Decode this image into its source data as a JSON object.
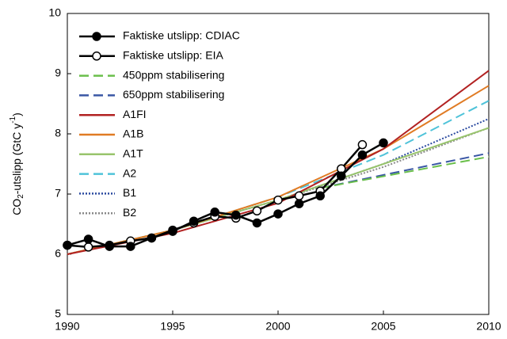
{
  "chart_data": {
    "type": "line",
    "ylabel_parts": [
      "CO",
      "2",
      "-utslipp (GtC y",
      "-1",
      ")"
    ],
    "xlim": [
      1990,
      2010
    ],
    "xticks": [
      1990,
      1995,
      2000,
      2005,
      2010
    ],
    "ylim": [
      5,
      10
    ],
    "yticks": [
      5,
      6,
      7,
      8,
      9,
      10
    ],
    "series": [
      {
        "name": "Faktiske utslipp: CDIAC",
        "color": "#000000",
        "dash": "solid",
        "marker": "filled",
        "x": [
          1990,
          1991,
          1992,
          1993,
          1994,
          1995,
          1996,
          1997,
          1998,
          1999,
          2000,
          2001,
          2002,
          2003,
          2004,
          2005
        ],
        "values": [
          6.15,
          6.25,
          6.13,
          6.13,
          6.27,
          6.38,
          6.55,
          6.7,
          6.65,
          6.52,
          6.67,
          6.84,
          6.97,
          7.3,
          7.65,
          7.85
        ]
      },
      {
        "name": "Faktiske utslipp: EIA",
        "color": "#000000",
        "dash": "solid",
        "marker": "open",
        "x": [
          1990,
          1991,
          1992,
          1993,
          1994,
          1995,
          1996,
          1997,
          1998,
          1999,
          2000,
          2001,
          2002,
          2003,
          2004
        ],
        "values": [
          6.15,
          6.12,
          6.15,
          6.22,
          6.27,
          6.4,
          6.52,
          6.63,
          6.6,
          6.72,
          6.9,
          6.97,
          7.05,
          7.42,
          7.82
        ]
      },
      {
        "name": "450ppm stabilisering",
        "color": "#6abf4b",
        "dash": "dashed",
        "x": [
          2002,
          2010
        ],
        "values": [
          7.1,
          7.62
        ]
      },
      {
        "name": "650ppm stabilisering",
        "color": "#3a57a5",
        "dash": "dashed",
        "x": [
          2002,
          2010
        ],
        "values": [
          7.1,
          7.68
        ]
      },
      {
        "name": "A1FI",
        "color": "#b22222",
        "dash": "solid",
        "x": [
          1990,
          1995,
          2000,
          2005,
          2010
        ],
        "values": [
          6.0,
          6.35,
          6.85,
          7.75,
          9.05
        ]
      },
      {
        "name": "A1B",
        "color": "#e07b24",
        "dash": "solid",
        "x": [
          1990,
          1995,
          2000,
          2005,
          2010
        ],
        "values": [
          6.0,
          6.4,
          6.95,
          7.75,
          8.8
        ]
      },
      {
        "name": "A1T",
        "color": "#98c46c",
        "dash": "solid",
        "x": [
          1990,
          1995,
          2000,
          2005,
          2010
        ],
        "values": [
          6.0,
          6.4,
          6.9,
          7.5,
          8.1
        ]
      },
      {
        "name": "A2",
        "color": "#4fc3d9",
        "dash": "dashed",
        "x": [
          1990,
          1995,
          2000,
          2005,
          2010
        ],
        "values": [
          6.0,
          6.4,
          6.95,
          7.65,
          8.55
        ]
      },
      {
        "name": "B1",
        "color": "#2b4aa0",
        "dash": "dotted",
        "x": [
          1990,
          1995,
          2000,
          2005,
          2010
        ],
        "values": [
          6.0,
          6.4,
          6.9,
          7.5,
          8.25
        ]
      },
      {
        "name": "B2",
        "color": "#888888",
        "dash": "dotted",
        "x": [
          1990,
          1995,
          2000,
          2005,
          2010
        ],
        "values": [
          6.0,
          6.4,
          6.9,
          7.45,
          8.1
        ]
      }
    ]
  }
}
